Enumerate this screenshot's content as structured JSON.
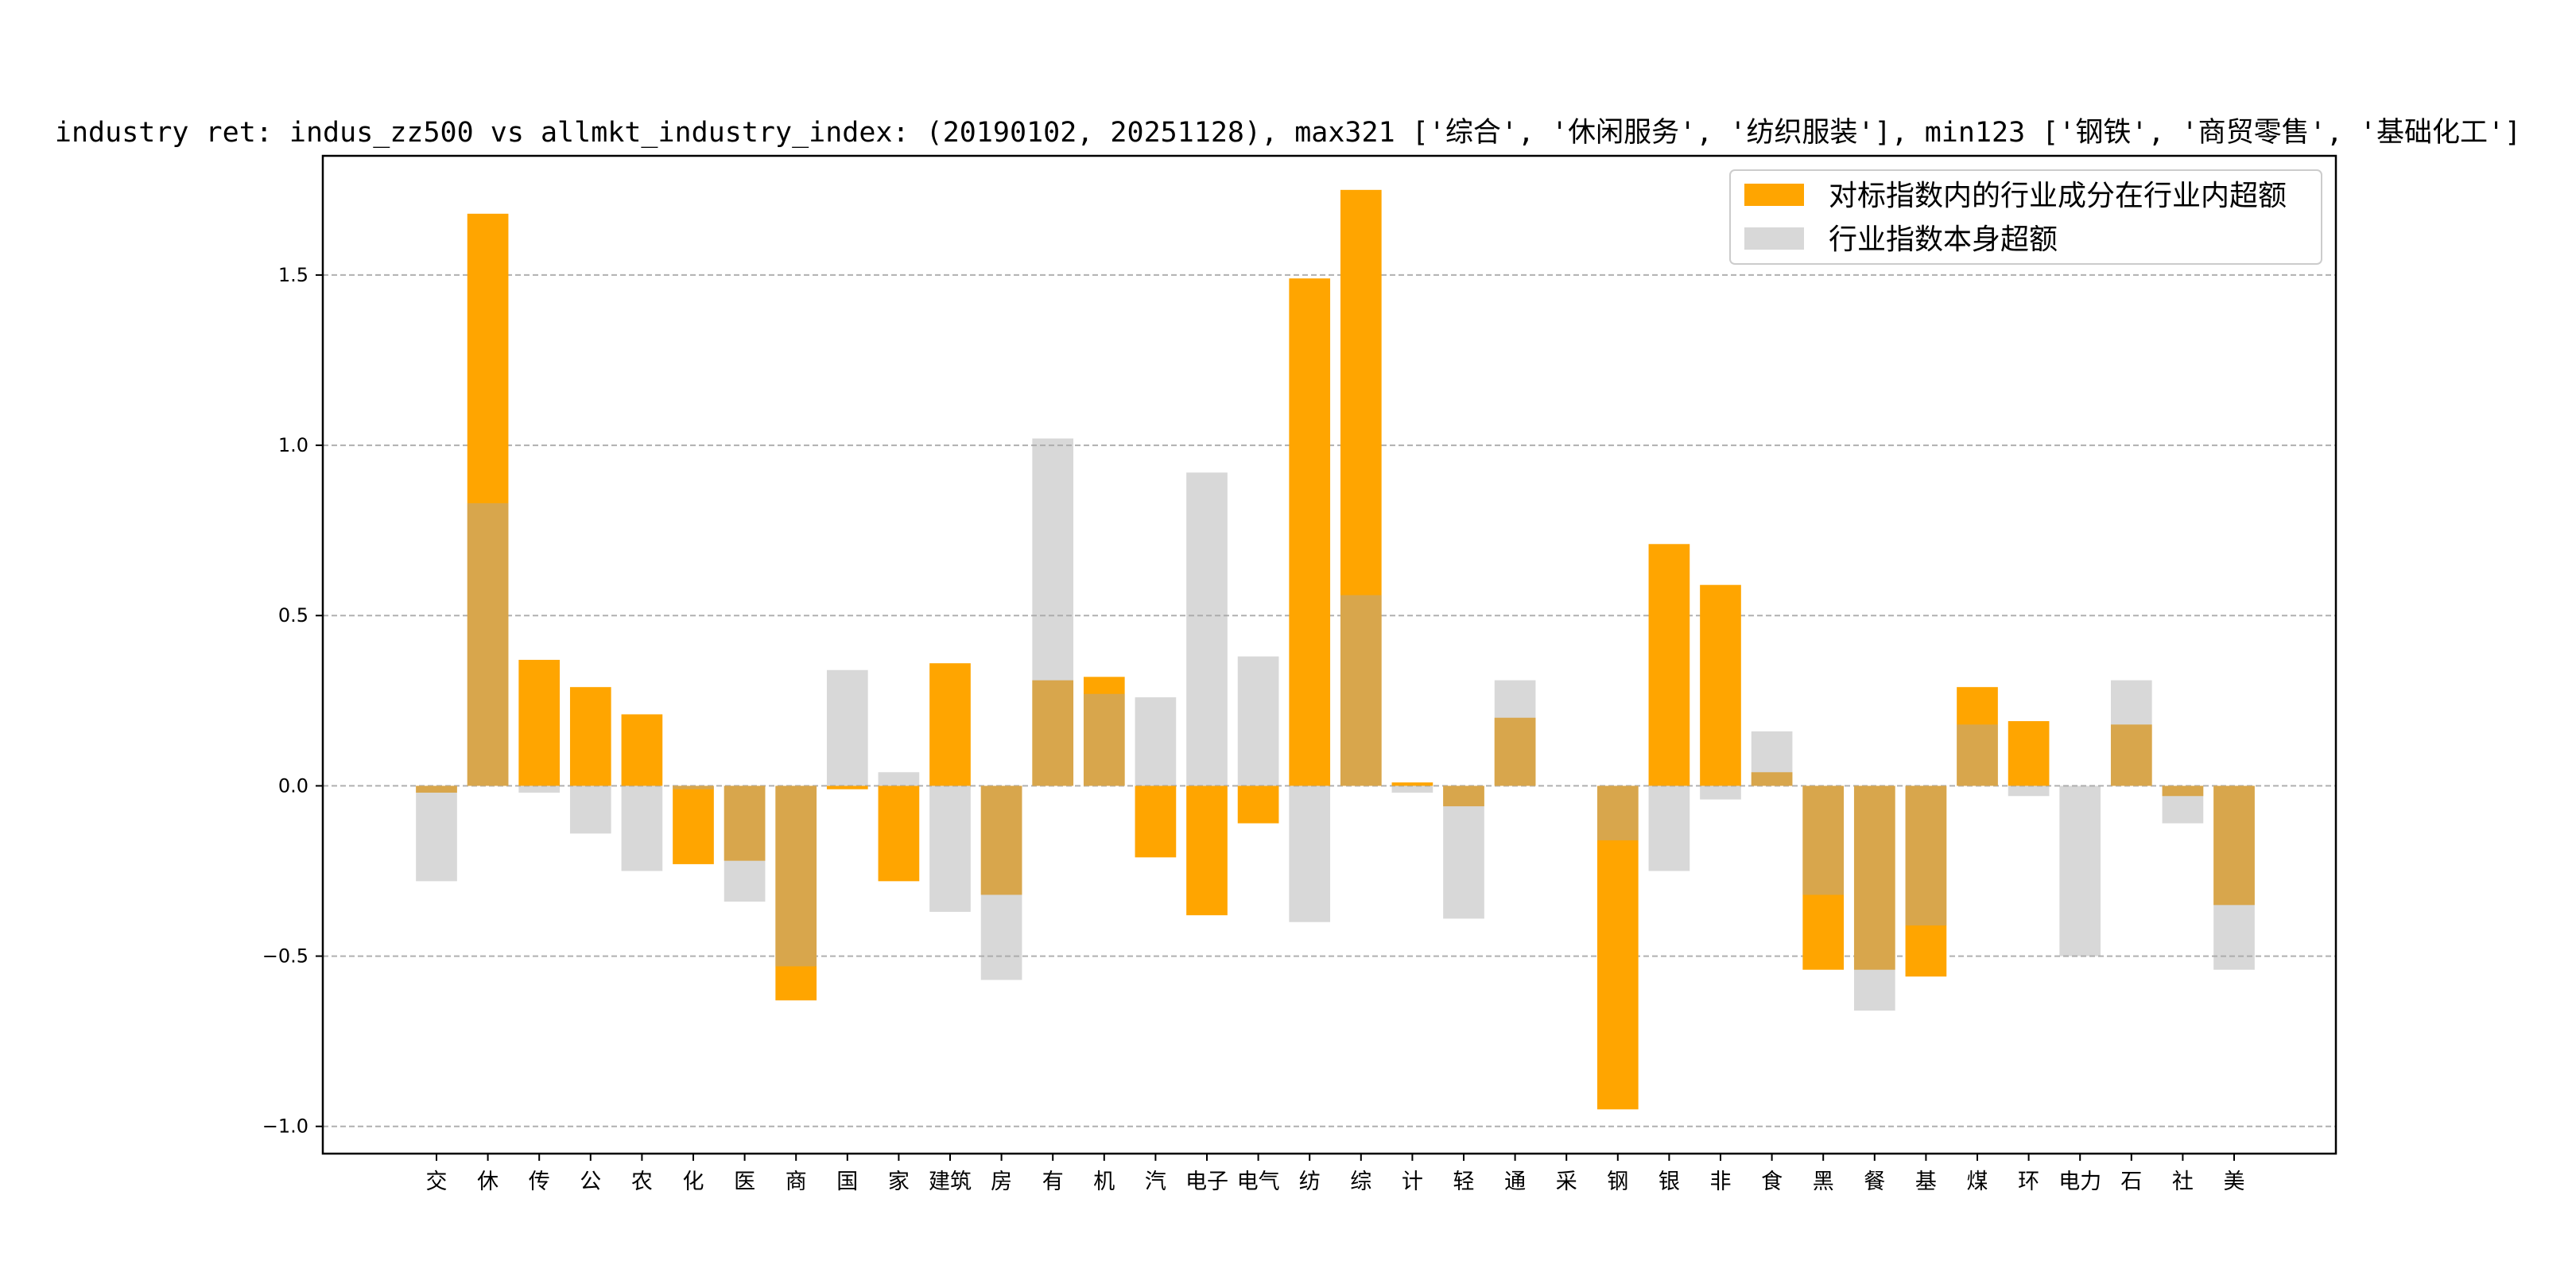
{
  "chart_data": {
    "type": "bar",
    "title": "industry ret: indus_zz500 vs allmkt_industry_index: (20190102, 20251128), max321 ['综合', '休闲服务', '纺织服装'], min123 ['钢铁', '商贸零售', '基础化工']",
    "xlabel": "",
    "ylabel": "",
    "ylim": [
      -1.08,
      1.85
    ],
    "yticks": [
      -1.0,
      -0.5,
      0.0,
      0.5,
      1.0,
      1.5
    ],
    "ytick_labels": [
      "−1.0",
      "−0.5",
      "0.0",
      "0.5",
      "1.0",
      "1.5"
    ],
    "grid": "y-dashed",
    "legend_position": "top-right",
    "categories": [
      "交",
      "休",
      "传",
      "公",
      "农",
      "化",
      "医",
      "商",
      "国",
      "家",
      "建筑",
      "房",
      "有",
      "机",
      "汽",
      "电子",
      "电气",
      "纺",
      "综",
      "计",
      "轻",
      "通",
      "采",
      "钢",
      "银",
      "非",
      "食",
      "黑",
      "餐",
      "基",
      "煤",
      "环",
      "电力",
      "石",
      "社",
      "美"
    ],
    "series": [
      {
        "name": "对标指数内的行业成分在行业内超额",
        "color": "#FFA500",
        "alpha": 1.0,
        "values": [
          -0.02,
          1.68,
          0.37,
          0.29,
          0.21,
          -0.23,
          -0.22,
          -0.63,
          -0.01,
          -0.28,
          0.36,
          -0.32,
          0.31,
          0.32,
          -0.21,
          -0.38,
          -0.11,
          1.49,
          1.75,
          0.01,
          -0.06,
          0.2,
          0.0,
          -0.95,
          0.71,
          0.59,
          0.04,
          -0.54,
          -0.54,
          -0.56,
          0.29,
          0.19,
          0.0,
          0.18,
          -0.03,
          -0.35
        ]
      },
      {
        "name": "行业指数本身超额",
        "color": "#A9A9A9",
        "alpha": 0.45,
        "values": [
          -0.28,
          0.83,
          -0.02,
          -0.14,
          -0.25,
          -0.01,
          -0.34,
          -0.53,
          0.34,
          0.04,
          -0.37,
          -0.57,
          1.02,
          0.27,
          0.26,
          0.92,
          0.38,
          -0.4,
          0.56,
          -0.02,
          -0.39,
          0.31,
          0.0,
          -0.16,
          -0.25,
          -0.04,
          0.16,
          -0.32,
          -0.66,
          -0.41,
          0.18,
          -0.03,
          -0.5,
          0.31,
          -0.11,
          -0.54
        ]
      }
    ]
  }
}
